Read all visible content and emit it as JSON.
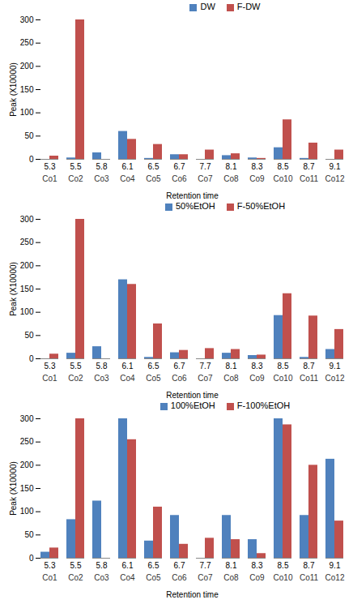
{
  "chart_data": [
    {
      "type": "bar",
      "categories": [
        "5.3",
        "5.5",
        "5.8",
        "6.1",
        "6.5",
        "6.7",
        "7.7",
        "8.1",
        "8.3",
        "8.5",
        "8.7",
        "9.1"
      ],
      "categories2": [
        "Co1",
        "Co2",
        "Co3",
        "Co4",
        "Co5",
        "Co6",
        "Co7",
        "Co8",
        "Co9",
        "Co10",
        "Co11",
        "Co12"
      ],
      "x_label": "Retention time",
      "y_label": "Peak (X10000)",
      "ylim": [
        0,
        300
      ],
      "yticks": [
        0,
        50,
        100,
        150,
        200,
        250,
        300
      ],
      "legend": "top",
      "grid": false,
      "series": [
        {
          "name": "DW",
          "color": "#4f81bd",
          "values": [
            0,
            3,
            14,
            60,
            2,
            10,
            0,
            8,
            3,
            25,
            2,
            0
          ]
        },
        {
          "name": "F-DW",
          "color": "#c0504d",
          "values": [
            7,
            300,
            0,
            43,
            32,
            10,
            20,
            12,
            2,
            85,
            35,
            20
          ]
        }
      ]
    },
    {
      "type": "bar",
      "categories": [
        "5.3",
        "5.5",
        "5.8",
        "6.1",
        "6.5",
        "6.7",
        "7.7",
        "8.1",
        "8.3",
        "8.5",
        "8.7",
        "9.1"
      ],
      "categories2": [
        "Co1",
        "Co2",
        "Co3",
        "Co4",
        "Co5",
        "Co6",
        "Co7",
        "Co8",
        "Co9",
        "Co10",
        "Co11",
        "Co12"
      ],
      "x_label": "Retention time",
      "y_label": "Peak (X10000)",
      "ylim": [
        0,
        300
      ],
      "yticks": [
        0,
        50,
        100,
        150,
        200,
        250,
        300
      ],
      "legend": "top",
      "grid": false,
      "series": [
        {
          "name": "50%EtOH",
          "color": "#4f81bd",
          "values": [
            0,
            12,
            26,
            170,
            3,
            13,
            0,
            12,
            7,
            93,
            3,
            20
          ]
        },
        {
          "name": "F-50%EtOH",
          "color": "#c0504d",
          "values": [
            10,
            300,
            0,
            160,
            75,
            18,
            22,
            20,
            8,
            140,
            92,
            63
          ]
        }
      ]
    },
    {
      "type": "bar",
      "categories": [
        "5.3",
        "5.5",
        "5.8",
        "6.1",
        "6.5",
        "6.7",
        "7.7",
        "8.1",
        "8.3",
        "8.5",
        "8.7",
        "9.1"
      ],
      "categories2": [
        "Co1",
        "Co2",
        "Co3",
        "Co4",
        "Co5",
        "Co6",
        "Co7",
        "Co8",
        "Co9",
        "Co10",
        "Co11",
        "Co12"
      ],
      "x_label": "Retention time",
      "y_label": "Peak (X10000)",
      "ylim": [
        0,
        300
      ],
      "yticks": [
        0,
        50,
        100,
        150,
        200,
        250,
        300
      ],
      "legend": "top",
      "grid": false,
      "series": [
        {
          "name": "100%EtOH",
          "color": "#4f81bd",
          "values": [
            13,
            83,
            123,
            300,
            37,
            92,
            0,
            92,
            40,
            300,
            92,
            213
          ]
        },
        {
          "name": "F-100%EtOH",
          "color": "#c0504d",
          "values": [
            22,
            300,
            0,
            255,
            110,
            30,
            43,
            40,
            10,
            287,
            200,
            80
          ]
        }
      ]
    }
  ]
}
